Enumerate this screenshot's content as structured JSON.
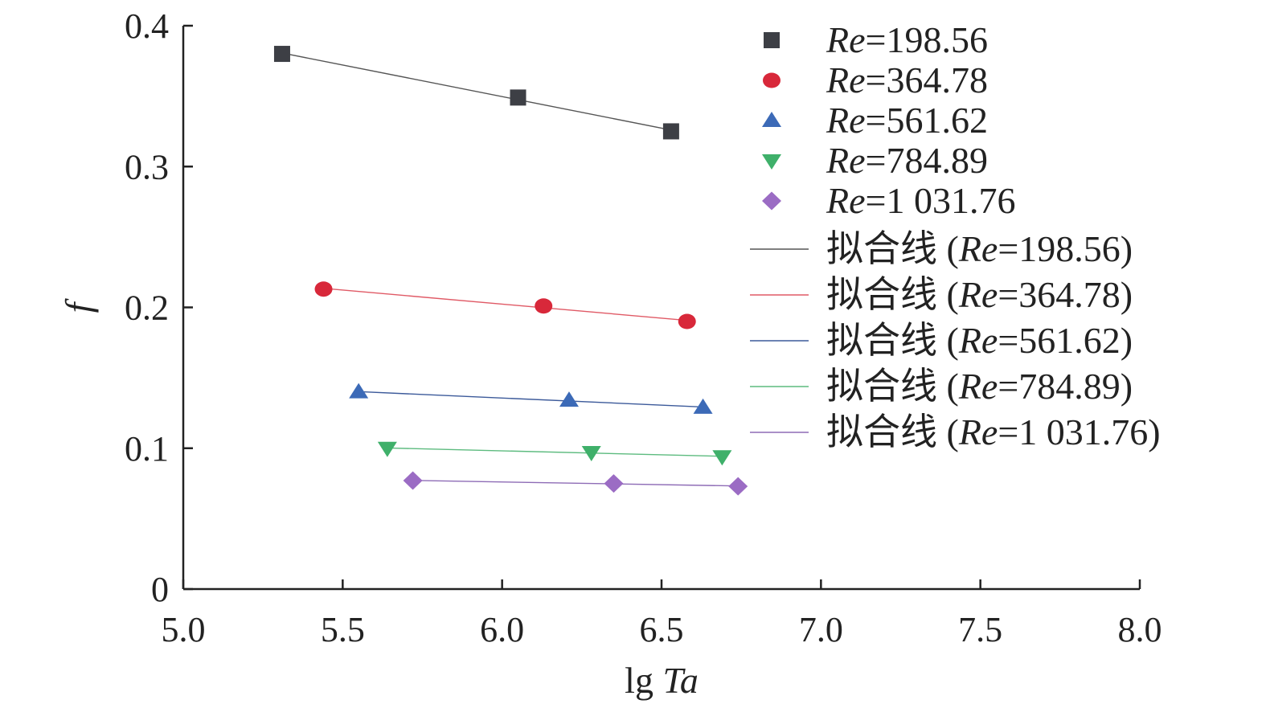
{
  "chart_data": {
    "type": "scatter",
    "xlabel_prefix": "lg ",
    "xlabel_italic": "Ta",
    "ylabel": "f",
    "xlim": [
      5.0,
      8.0
    ],
    "ylim": [
      0,
      0.4
    ],
    "x_ticks": [
      "5.0",
      "5.5",
      "6.0",
      "6.5",
      "7.0",
      "7.5",
      "8.0"
    ],
    "y_ticks": [
      "0",
      "0.1",
      "0.2",
      "0.3",
      "0.4"
    ],
    "grid": false,
    "legend_position": "top-right",
    "series": [
      {
        "name_italic": "Re",
        "name_value": "=198.56",
        "fit_prefix": "拟合线 (",
        "fit_suffix": "=198.56)",
        "marker": "square",
        "color": "#3d3f45",
        "line_color": "#555555",
        "x": [
          5.31,
          6.05,
          6.53
        ],
        "y": [
          0.38,
          0.349,
          0.325
        ]
      },
      {
        "name_italic": "Re",
        "name_value": "=364.78",
        "fit_prefix": "拟合线 (",
        "fit_suffix": "=364.78)",
        "marker": "circle",
        "color": "#d8283a",
        "line_color": "#e05a66",
        "x": [
          5.44,
          6.13,
          6.58
        ],
        "y": [
          0.213,
          0.201,
          0.19
        ]
      },
      {
        "name_italic": "Re",
        "name_value": "=561.62",
        "fit_prefix": "拟合线 (",
        "fit_suffix": "=561.62)",
        "marker": "triangle-up",
        "color": "#3c6ab7",
        "line_color": "#3c5a9a",
        "x": [
          5.55,
          6.21,
          6.63
        ],
        "y": [
          0.14,
          0.134,
          0.129
        ]
      },
      {
        "name_italic": "Re",
        "name_value": "=784.89",
        "fit_prefix": "拟合线 (",
        "fit_suffix": "=784.89)",
        "marker": "triangle-down",
        "color": "#3fb06a",
        "line_color": "#5dbb7f",
        "x": [
          5.64,
          6.28,
          6.69
        ],
        "y": [
          0.1,
          0.097,
          0.094
        ]
      },
      {
        "name_italic": "Re",
        "name_value": "=1 031.76",
        "fit_prefix": "拟合线 (",
        "fit_suffix": "=1 031.76)",
        "marker": "diamond",
        "color": "#9b6cc4",
        "line_color": "#8e6cb6",
        "x": [
          5.72,
          6.35,
          6.74
        ],
        "y": [
          0.077,
          0.075,
          0.073
        ]
      }
    ]
  }
}
